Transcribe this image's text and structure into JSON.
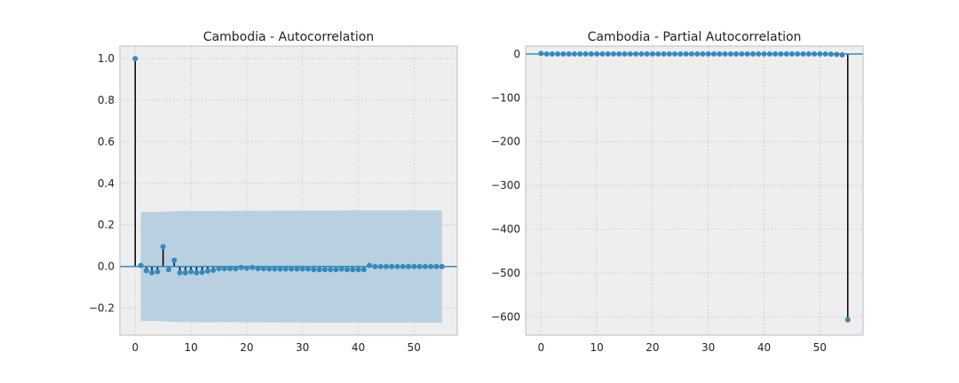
{
  "chart_data": [
    {
      "type": "stem",
      "title": "Cambodia - Autocorrelation",
      "xlabel": "",
      "ylabel": "",
      "xlim": [
        -2.75,
        57.75
      ],
      "ylim": [
        -0.33,
        1.06
      ],
      "xticks": [
        0,
        10,
        20,
        30,
        40,
        50
      ],
      "yticks": [
        -0.2,
        0.0,
        0.2,
        0.4,
        0.6,
        0.8,
        1.0
      ],
      "grid": true,
      "x": [
        0,
        1,
        2,
        3,
        4,
        5,
        6,
        7,
        8,
        9,
        10,
        11,
        12,
        13,
        14,
        15,
        16,
        17,
        18,
        19,
        20,
        21,
        22,
        23,
        24,
        25,
        26,
        27,
        28,
        29,
        30,
        31,
        32,
        33,
        34,
        35,
        36,
        37,
        38,
        39,
        40,
        41,
        42,
        43,
        44,
        45,
        46,
        47,
        48,
        49,
        50,
        51,
        52,
        53,
        54,
        55
      ],
      "values": [
        1.0,
        0.005,
        -0.02,
        -0.03,
        -0.025,
        0.095,
        -0.015,
        0.03,
        -0.03,
        -0.03,
        -0.025,
        -0.03,
        -0.028,
        -0.022,
        -0.018,
        -0.01,
        -0.01,
        -0.01,
        -0.01,
        -0.005,
        -0.008,
        -0.005,
        -0.01,
        -0.01,
        -0.012,
        -0.012,
        -0.012,
        -0.012,
        -0.012,
        -0.012,
        -0.012,
        -0.012,
        -0.015,
        -0.015,
        -0.015,
        -0.015,
        -0.015,
        -0.012,
        -0.015,
        -0.015,
        -0.015,
        -0.015,
        0.005,
        0.0,
        0.0,
        0.0,
        0.0,
        0.0,
        0.0,
        0.0,
        0.0,
        0.0,
        0.0,
        0.0,
        0.0,
        0.0
      ],
      "confidence_band": {
        "x": [
          1,
          2,
          3,
          4,
          5,
          6,
          7,
          8,
          9,
          10,
          20,
          30,
          40,
          50,
          55
        ],
        "upper": [
          0.262,
          0.262,
          0.262,
          0.262,
          0.264,
          0.265,
          0.266,
          0.267,
          0.267,
          0.267,
          0.268,
          0.269,
          0.27,
          0.27,
          0.27
        ],
        "lower": [
          -0.262,
          -0.262,
          -0.262,
          -0.262,
          -0.264,
          -0.265,
          -0.266,
          -0.267,
          -0.267,
          -0.267,
          -0.268,
          -0.269,
          -0.27,
          -0.27,
          -0.27
        ]
      },
      "colors": {
        "marker": "#348abd",
        "stem": "#000000",
        "baseline": "#348abd",
        "band": "#b9d0e0",
        "background": "#eeeeee",
        "grid": "#cccccc"
      }
    },
    {
      "type": "stem",
      "title": "Cambodia - Partial Autocorrelation",
      "xlabel": "",
      "ylabel": "",
      "xlim": [
        -2.75,
        57.75
      ],
      "ylim": [
        -642,
        18
      ],
      "xticks": [
        0,
        10,
        20,
        30,
        40,
        50
      ],
      "yticks": [
        -600,
        -500,
        -400,
        -300,
        -200,
        -100,
        0
      ],
      "grid": true,
      "x": [
        0,
        1,
        2,
        3,
        4,
        5,
        6,
        7,
        8,
        9,
        10,
        11,
        12,
        13,
        14,
        15,
        16,
        17,
        18,
        19,
        20,
        21,
        22,
        23,
        24,
        25,
        26,
        27,
        28,
        29,
        30,
        31,
        32,
        33,
        34,
        35,
        36,
        37,
        38,
        39,
        40,
        41,
        42,
        43,
        44,
        45,
        46,
        47,
        48,
        49,
        50,
        51,
        52,
        53,
        54,
        55
      ],
      "values": [
        1,
        0,
        0,
        0,
        0,
        0,
        0,
        0,
        0,
        0,
        0,
        0,
        0,
        0,
        0,
        0,
        0,
        0,
        0,
        0,
        0,
        0,
        0,
        0,
        0,
        0,
        0,
        0,
        0,
        0,
        0,
        0,
        0,
        0,
        0,
        0,
        0,
        0,
        0,
        0,
        0,
        0,
        0,
        0,
        0,
        0,
        0,
        0,
        0,
        0,
        0,
        0,
        -0.5,
        -1,
        -2,
        -607
      ],
      "colors": {
        "marker": "#348abd",
        "stem": "#000000",
        "baseline": "#348abd",
        "background": "#eeeeee",
        "grid": "#cccccc"
      }
    }
  ]
}
